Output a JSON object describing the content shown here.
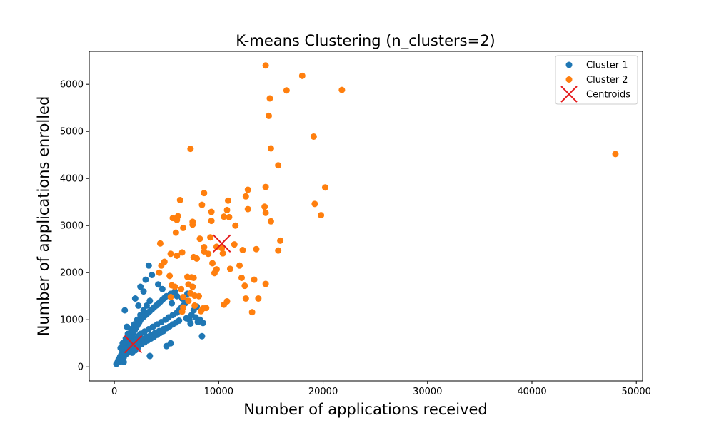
{
  "chart_data": {
    "type": "scatter",
    "title": "K-means Clustering (n_clusters=2)",
    "xlabel": "Number of applications received",
    "ylabel": "Number of applications enrolled",
    "xlim": [
      -2400,
      50600
    ],
    "ylim": [
      -300,
      6700
    ],
    "xticks": [
      0,
      10000,
      20000,
      30000,
      40000,
      50000
    ],
    "xtick_labels": [
      "0",
      "10000",
      "20000",
      "30000",
      "40000",
      "50000"
    ],
    "yticks": [
      0,
      1000,
      2000,
      3000,
      4000,
      5000,
      6000
    ],
    "ytick_labels": [
      "0",
      "1000",
      "2000",
      "3000",
      "4000",
      "5000",
      "6000"
    ],
    "grid": false,
    "legend_position": "top-right",
    "series": [
      {
        "name": "Cluster 1",
        "color": "#1f77b4",
        "marker": "circle",
        "points": [
          [
            200,
            60
          ],
          [
            300,
            90
          ],
          [
            350,
            120
          ],
          [
            400,
            150
          ],
          [
            450,
            100
          ],
          [
            500,
            180
          ],
          [
            550,
            210
          ],
          [
            600,
            160
          ],
          [
            650,
            250
          ],
          [
            700,
            220
          ],
          [
            750,
            300
          ],
          [
            800,
            270
          ],
          [
            850,
            330
          ],
          [
            900,
            200
          ],
          [
            950,
            380
          ],
          [
            1000,
            300
          ],
          [
            1050,
            420
          ],
          [
            1100,
            350
          ],
          [
            1150,
            460
          ],
          [
            1200,
            280
          ],
          [
            1250,
            500
          ],
          [
            1300,
            400
          ],
          [
            1350,
            540
          ],
          [
            1400,
            330
          ],
          [
            1450,
            580
          ],
          [
            1500,
            450
          ],
          [
            1550,
            620
          ],
          [
            1600,
            380
          ],
          [
            1650,
            660
          ],
          [
            1700,
            500
          ],
          [
            1750,
            700
          ],
          [
            1800,
            420
          ],
          [
            1850,
            740
          ],
          [
            1900,
            550
          ],
          [
            1950,
            780
          ],
          [
            2000,
            470
          ],
          [
            2050,
            820
          ],
          [
            2100,
            600
          ],
          [
            2150,
            860
          ],
          [
            2200,
            520
          ],
          [
            2250,
            900
          ],
          [
            2300,
            650
          ],
          [
            2350,
            940
          ],
          [
            2400,
            560
          ],
          [
            2450,
            980
          ],
          [
            2500,
            700
          ],
          [
            2600,
            1020
          ],
          [
            2700,
            600
          ],
          [
            2800,
            1060
          ],
          [
            2900,
            750
          ],
          [
            3000,
            1100
          ],
          [
            3100,
            640
          ],
          [
            3200,
            1140
          ],
          [
            3300,
            800
          ],
          [
            3400,
            1180
          ],
          [
            3500,
            680
          ],
          [
            3600,
            1220
          ],
          [
            3700,
            850
          ],
          [
            3800,
            1260
          ],
          [
            3900,
            720
          ],
          [
            4000,
            1300
          ],
          [
            4100,
            900
          ],
          [
            4200,
            1340
          ],
          [
            4300,
            760
          ],
          [
            4400,
            1380
          ],
          [
            4500,
            950
          ],
          [
            4600,
            1420
          ],
          [
            4700,
            800
          ],
          [
            4800,
            1460
          ],
          [
            4900,
            1000
          ],
          [
            5000,
            1500
          ],
          [
            5200,
            1050
          ],
          [
            5400,
            1550
          ],
          [
            5600,
            1100
          ],
          [
            5800,
            1600
          ],
          [
            6000,
            1150
          ],
          [
            6200,
            1200
          ],
          [
            6400,
            1250
          ],
          [
            6600,
            1300
          ],
          [
            6800,
            1350
          ],
          [
            7000,
            1400
          ],
          [
            7200,
            1000
          ],
          [
            7400,
            1100
          ],
          [
            7600,
            1200
          ],
          [
            7800,
            1050
          ],
          [
            8000,
            950
          ],
          [
            8200,
            1000
          ],
          [
            8500,
            930
          ],
          [
            8400,
            650
          ],
          [
            3300,
            2150
          ],
          [
            3600,
            1950
          ],
          [
            2800,
            1600
          ],
          [
            4200,
            1750
          ],
          [
            5000,
            440
          ],
          [
            5400,
            500
          ],
          [
            3400,
            230
          ],
          [
            900,
            100
          ],
          [
            1000,
            1200
          ],
          [
            1200,
            850
          ],
          [
            2000,
            1450
          ],
          [
            2300,
            1300
          ],
          [
            2500,
            1700
          ],
          [
            3000,
            1850
          ],
          [
            4600,
            1650
          ],
          [
            1700,
            300
          ],
          [
            2000,
            350
          ],
          [
            2300,
            420
          ],
          [
            2600,
            480
          ],
          [
            2900,
            520
          ],
          [
            3200,
            560
          ],
          [
            3500,
            600
          ],
          [
            3800,
            640
          ],
          [
            4100,
            680
          ],
          [
            4400,
            720
          ],
          [
            4700,
            760
          ],
          [
            5000,
            820
          ],
          [
            5300,
            860
          ],
          [
            5600,
            900
          ],
          [
            5900,
            940
          ],
          [
            6200,
            980
          ],
          [
            1300,
            700
          ],
          [
            1600,
            800
          ],
          [
            1900,
            900
          ],
          [
            2200,
            1000
          ],
          [
            2500,
            1100
          ],
          [
            2800,
            1200
          ],
          [
            3100,
            1300
          ],
          [
            3400,
            1400
          ],
          [
            600,
            400
          ],
          [
            800,
            500
          ],
          [
            1100,
            600
          ],
          [
            1400,
            650
          ],
          [
            1800,
            750
          ],
          [
            2100,
            850
          ],
          [
            2400,
            950
          ],
          [
            2700,
            1050
          ],
          [
            6500,
            1450
          ],
          [
            7000,
            1550
          ],
          [
            7500,
            1700
          ],
          [
            6000,
            1500
          ],
          [
            5500,
            1350
          ],
          [
            7300,
            920
          ],
          [
            7900,
            1280
          ],
          [
            6900,
            1030
          ]
        ]
      },
      {
        "name": "Cluster 2",
        "color": "#ff7f0e",
        "marker": "circle",
        "points": [
          [
            14500,
            6400
          ],
          [
            18000,
            6180
          ],
          [
            21800,
            5880
          ],
          [
            16500,
            5870
          ],
          [
            14900,
            5700
          ],
          [
            14800,
            5330
          ],
          [
            19100,
            4890
          ],
          [
            15000,
            4640
          ],
          [
            7300,
            4630
          ],
          [
            48000,
            4520
          ],
          [
            15700,
            4280
          ],
          [
            20200,
            3810
          ],
          [
            14500,
            3820
          ],
          [
            12800,
            3760
          ],
          [
            8600,
            3690
          ],
          [
            12600,
            3620
          ],
          [
            6300,
            3540
          ],
          [
            10900,
            3530
          ],
          [
            19200,
            3460
          ],
          [
            8400,
            3440
          ],
          [
            12800,
            3350
          ],
          [
            10800,
            3330
          ],
          [
            14400,
            3400
          ],
          [
            14500,
            3270
          ],
          [
            9300,
            3290
          ],
          [
            6100,
            3200
          ],
          [
            10500,
            3190
          ],
          [
            11000,
            3180
          ],
          [
            19800,
            3220
          ],
          [
            5600,
            3160
          ],
          [
            6000,
            3120
          ],
          [
            7500,
            3080
          ],
          [
            9300,
            3100
          ],
          [
            15000,
            3090
          ],
          [
            11600,
            3000
          ],
          [
            6600,
            2950
          ],
          [
            7500,
            3020
          ],
          [
            5900,
            2850
          ],
          [
            9200,
            2750
          ],
          [
            8200,
            2720
          ],
          [
            4400,
            2620
          ],
          [
            15900,
            2680
          ],
          [
            8600,
            2540
          ],
          [
            9800,
            2550
          ],
          [
            10300,
            2520
          ],
          [
            12300,
            2480
          ],
          [
            13600,
            2500
          ],
          [
            15700,
            2470
          ],
          [
            10400,
            2410
          ],
          [
            8600,
            2450
          ],
          [
            6500,
            2430
          ],
          [
            5400,
            2400
          ],
          [
            7600,
            2330
          ],
          [
            7900,
            2300
          ],
          [
            6000,
            2360
          ],
          [
            4800,
            2230
          ],
          [
            4500,
            2150
          ],
          [
            9400,
            2200
          ],
          [
            9800,
            2070
          ],
          [
            11100,
            2080
          ],
          [
            9600,
            1990
          ],
          [
            4300,
            2000
          ],
          [
            5300,
            1930
          ],
          [
            7000,
            1910
          ],
          [
            7600,
            1890
          ],
          [
            12200,
            1890
          ],
          [
            13400,
            1850
          ],
          [
            12500,
            1720
          ],
          [
            14500,
            1760
          ],
          [
            5500,
            1730
          ],
          [
            5800,
            1700
          ],
          [
            7500,
            1700
          ],
          [
            6400,
            1650
          ],
          [
            7300,
            1560
          ],
          [
            7700,
            1510
          ],
          [
            8100,
            1500
          ],
          [
            5400,
            1480
          ],
          [
            6600,
            1480
          ],
          [
            7100,
            1400
          ],
          [
            12600,
            1450
          ],
          [
            13800,
            1450
          ],
          [
            10800,
            1390
          ],
          [
            7700,
            1300
          ],
          [
            6600,
            1260
          ],
          [
            8500,
            1240
          ],
          [
            8800,
            1250
          ],
          [
            10500,
            1320
          ],
          [
            13200,
            1160
          ],
          [
            8300,
            1180
          ],
          [
            6500,
            1170
          ],
          [
            7400,
            1900
          ],
          [
            9000,
            2400
          ],
          [
            11500,
            2600
          ],
          [
            12000,
            2150
          ],
          [
            7100,
            1750
          ]
        ]
      },
      {
        "name": "Centroids",
        "color": "#e41a1c",
        "marker": "x",
        "points": [
          [
            1800,
            480
          ],
          [
            10300,
            2620
          ]
        ]
      }
    ]
  }
}
